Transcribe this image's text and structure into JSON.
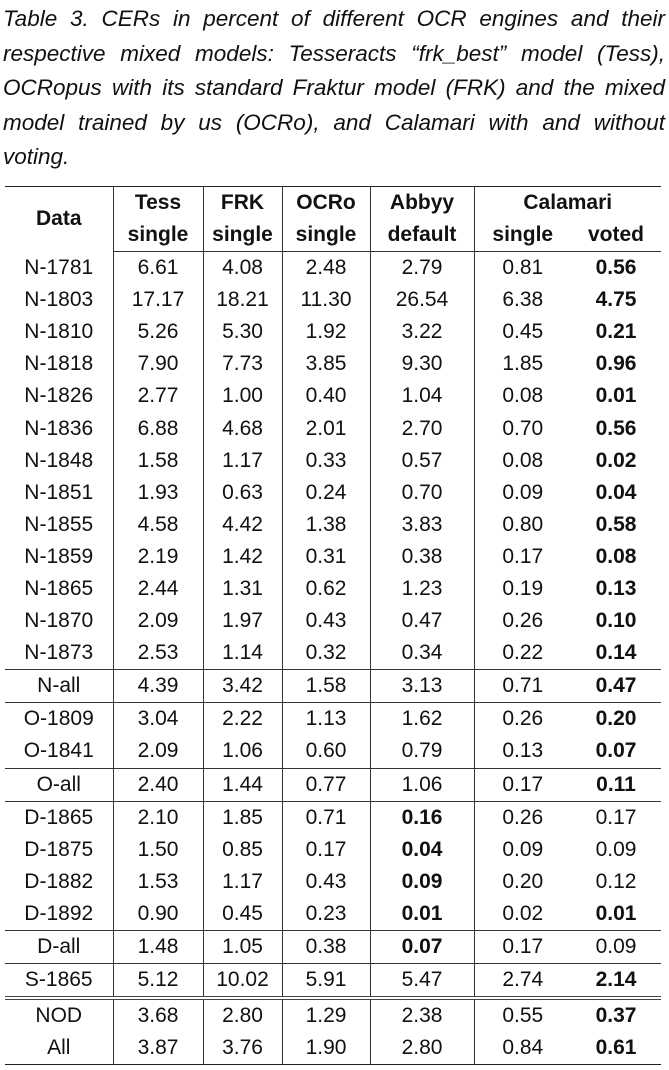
{
  "caption": "Table 3. CERs in percent of different OCR engines and their respective mixed models: Tesseracts “frk_best” model (Tess), OCRopus with its standard Fraktur model (FRK) and the mixed model trained by us (OCRo), and Calamari with and without voting.",
  "table": {
    "header": {
      "data": "Data",
      "tess": "Tess",
      "frk": "FRK",
      "ocro": "OCRo",
      "abbyy": "Abbyy",
      "calamari": "Calamari",
      "sub": [
        "single",
        "single",
        "single",
        "default",
        "single",
        "voted"
      ]
    },
    "rows": [
      {
        "cells": [
          "N-1781",
          "6.61",
          "4.08",
          "2.48",
          "2.79",
          "0.81",
          "0.56"
        ],
        "bold": [
          6
        ]
      },
      {
        "cells": [
          "N-1803",
          "17.17",
          "18.21",
          "11.30",
          "26.54",
          "6.38",
          "4.75"
        ],
        "bold": [
          6
        ]
      },
      {
        "cells": [
          "N-1810",
          "5.26",
          "5.30",
          "1.92",
          "3.22",
          "0.45",
          "0.21"
        ],
        "bold": [
          6
        ]
      },
      {
        "cells": [
          "N-1818",
          "7.90",
          "7.73",
          "3.85",
          "9.30",
          "1.85",
          "0.96"
        ],
        "bold": [
          6
        ]
      },
      {
        "cells": [
          "N-1826",
          "2.77",
          "1.00",
          "0.40",
          "1.04",
          "0.08",
          "0.01"
        ],
        "bold": [
          6
        ]
      },
      {
        "cells": [
          "N-1836",
          "6.88",
          "4.68",
          "2.01",
          "2.70",
          "0.70",
          "0.56"
        ],
        "bold": [
          6
        ]
      },
      {
        "cells": [
          "N-1848",
          "1.58",
          "1.17",
          "0.33",
          "0.57",
          "0.08",
          "0.02"
        ],
        "bold": [
          6
        ]
      },
      {
        "cells": [
          "N-1851",
          "1.93",
          "0.63",
          "0.24",
          "0.70",
          "0.09",
          "0.04"
        ],
        "bold": [
          6
        ]
      },
      {
        "cells": [
          "N-1855",
          "4.58",
          "4.42",
          "1.38",
          "3.83",
          "0.80",
          "0.58"
        ],
        "bold": [
          6
        ]
      },
      {
        "cells": [
          "N-1859",
          "2.19",
          "1.42",
          "0.31",
          "0.38",
          "0.17",
          "0.08"
        ],
        "bold": [
          6
        ]
      },
      {
        "cells": [
          "N-1865",
          "2.44",
          "1.31",
          "0.62",
          "1.23",
          "0.19",
          "0.13"
        ],
        "bold": [
          6
        ]
      },
      {
        "cells": [
          "N-1870",
          "2.09",
          "1.97",
          "0.43",
          "0.47",
          "0.26",
          "0.10"
        ],
        "bold": [
          6
        ]
      },
      {
        "cells": [
          "N-1873",
          "2.53",
          "1.14",
          "0.32",
          "0.34",
          "0.22",
          "0.14"
        ],
        "bold": [
          6
        ]
      },
      {
        "cells": [
          "N-all",
          "4.39",
          "3.42",
          "1.58",
          "3.13",
          "0.71",
          "0.47"
        ],
        "bold": [
          6
        ],
        "sep": "single"
      },
      {
        "cells": [
          "O-1809",
          "3.04",
          "2.22",
          "1.13",
          "1.62",
          "0.26",
          "0.20"
        ],
        "bold": [
          6
        ],
        "sep": "single"
      },
      {
        "cells": [
          "O-1841",
          "2.09",
          "1.06",
          "0.60",
          "0.79",
          "0.13",
          "0.07"
        ],
        "bold": [
          6
        ]
      },
      {
        "cells": [
          "O-all",
          "2.40",
          "1.44",
          "0.77",
          "1.06",
          "0.17",
          "0.11"
        ],
        "bold": [
          6
        ],
        "sep": "single"
      },
      {
        "cells": [
          "D-1865",
          "2.10",
          "1.85",
          "0.71",
          "0.16",
          "0.26",
          "0.17"
        ],
        "bold": [
          4
        ],
        "sep": "single"
      },
      {
        "cells": [
          "D-1875",
          "1.50",
          "0.85",
          "0.17",
          "0.04",
          "0.09",
          "0.09"
        ],
        "bold": [
          4
        ]
      },
      {
        "cells": [
          "D-1882",
          "1.53",
          "1.17",
          "0.43",
          "0.09",
          "0.20",
          "0.12"
        ],
        "bold": [
          4
        ]
      },
      {
        "cells": [
          "D-1892",
          "0.90",
          "0.45",
          "0.23",
          "0.01",
          "0.02",
          "0.01"
        ],
        "bold": [
          4,
          6
        ]
      },
      {
        "cells": [
          "D-all",
          "1.48",
          "1.05",
          "0.38",
          "0.07",
          "0.17",
          "0.09"
        ],
        "bold": [
          4
        ],
        "sep": "single"
      },
      {
        "cells": [
          "S-1865",
          "5.12",
          "10.02",
          "5.91",
          "5.47",
          "2.74",
          "2.14"
        ],
        "bold": [
          6
        ],
        "sep": "single"
      },
      {
        "cells": [
          "NOD",
          "3.68",
          "2.80",
          "1.29",
          "2.38",
          "0.55",
          "0.37"
        ],
        "bold": [
          6
        ],
        "sep": "double"
      },
      {
        "cells": [
          "All",
          "3.87",
          "3.76",
          "1.90",
          "2.80",
          "0.84",
          "0.61"
        ],
        "bold": [
          6
        ]
      }
    ]
  }
}
